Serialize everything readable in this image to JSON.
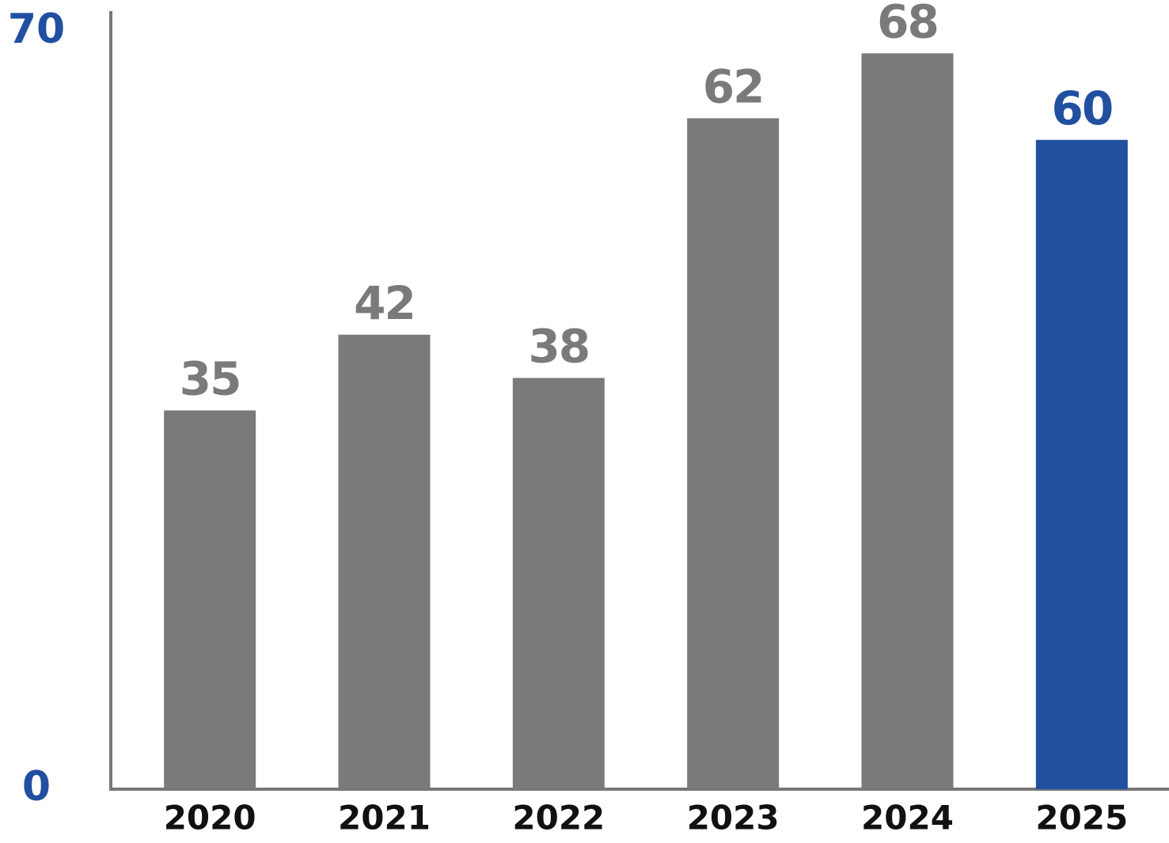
{
  "chart_data": {
    "type": "bar",
    "categories": [
      "2020",
      "2021",
      "2022",
      "2023",
      "2024",
      "2025"
    ],
    "values": [
      35,
      42,
      38,
      62,
      68,
      60
    ],
    "colors": [
      "#7a7a7a",
      "#7a7a7a",
      "#7a7a7a",
      "#7a7a7a",
      "#7a7a7a",
      "#2150a0"
    ],
    "ylim": [
      0,
      70
    ],
    "yticks": [
      0,
      70
    ],
    "ytick_color": "#2150a0",
    "grid": false
  }
}
